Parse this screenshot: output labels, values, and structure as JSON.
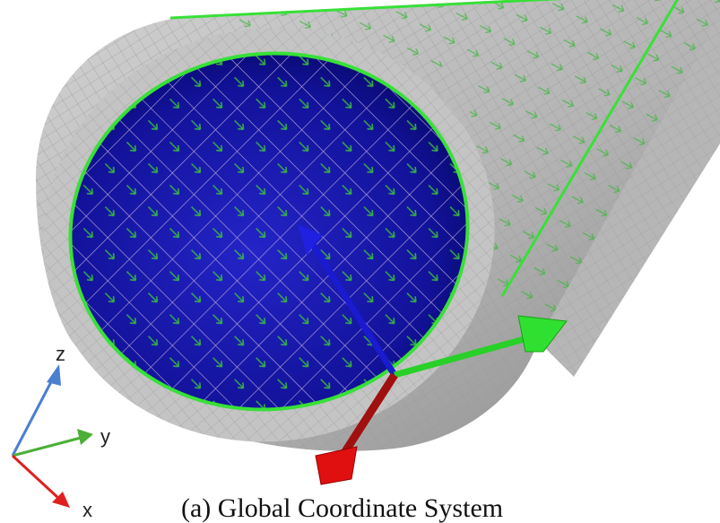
{
  "caption": "(a) Global Coordinate System",
  "axes": {
    "z": {
      "label": "z",
      "color": "#4a7fd0"
    },
    "y": {
      "label": "y",
      "color": "#4caf38"
    },
    "x": {
      "label": "x",
      "color": "#e02020"
    }
  },
  "colors": {
    "pipe_wall": "#b9b9b9",
    "pipe_wall_dark": "#8e8e8e",
    "inner_face": "#10108e",
    "inner_face_light": "#2a2ad6",
    "mesh_line": "#b8a8d8",
    "force_arrow": "#3cc43c",
    "outline": "#38e038",
    "local_normal": "#1a1ad0",
    "local_x": "#c01010",
    "local_y": "#28d028"
  }
}
